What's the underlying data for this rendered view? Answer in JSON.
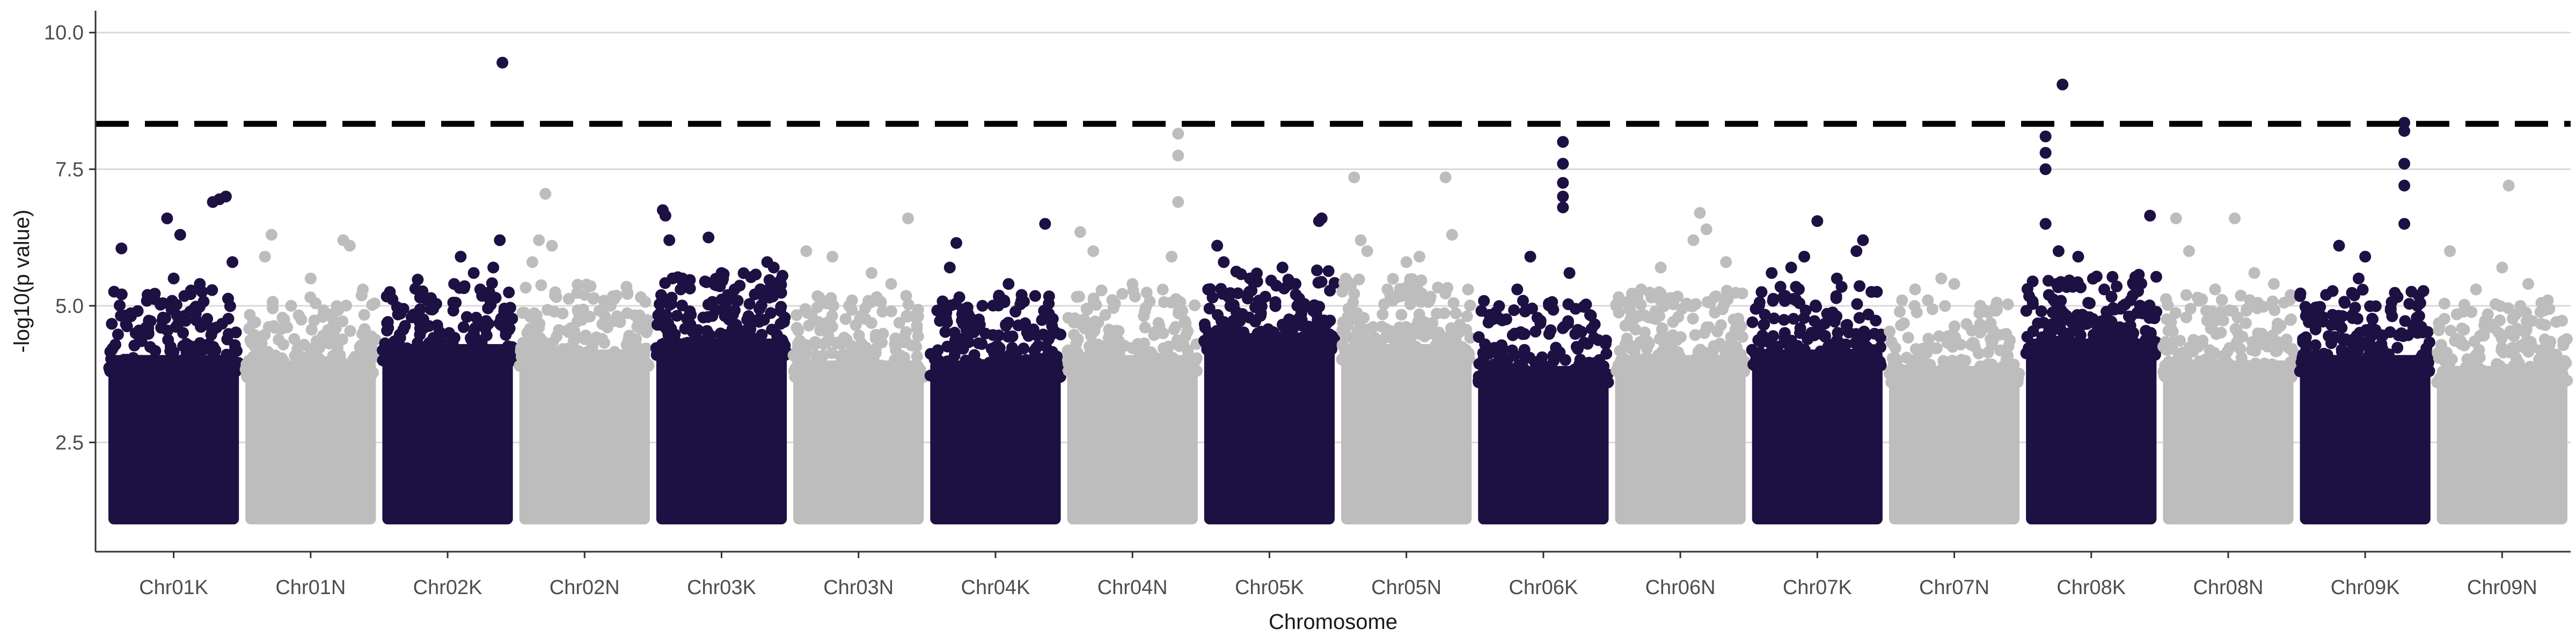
{
  "chart_data": {
    "type": "scatter",
    "title": "",
    "xlabel": "Chromosome",
    "ylabel": "-log10(p value)",
    "ylim": [
      0.5,
      10.4
    ],
    "yticks": [
      2.5,
      5.0,
      7.5,
      10.0
    ],
    "yticks_labels": [
      "2.5",
      "5.0",
      "7.5",
      "10.0"
    ],
    "grid": "horizontal major gridlines",
    "legend": "none",
    "threshold": {
      "value": 8.33,
      "style": "dashed",
      "color": "#000000"
    },
    "colors": {
      "dark": "#1d1042",
      "light": "#bdbdbd"
    },
    "categories": [
      "Chr01K",
      "Chr01N",
      "Chr02K",
      "Chr02N",
      "Chr03K",
      "Chr03N",
      "Chr04K",
      "Chr04N",
      "Chr05K",
      "Chr05N",
      "Chr06K",
      "Chr06N",
      "Chr07K",
      "Chr07N",
      "Chr08K",
      "Chr08N",
      "Chr09K",
      "Chr09N"
    ],
    "point_min": 1.0,
    "chromosomes": [
      {
        "name": "Chr01K",
        "color": "dark",
        "dense_top": 4.1,
        "peaks": [
          [
            0.1,
            6.05
          ],
          [
            0.45,
            6.6
          ],
          [
            0.55,
            6.3
          ],
          [
            0.8,
            6.9
          ],
          [
            0.85,
            6.95
          ],
          [
            0.9,
            7.0
          ],
          [
            0.95,
            5.8
          ],
          [
            0.5,
            5.5
          ],
          [
            0.3,
            5.2
          ],
          [
            0.7,
            5.4
          ]
        ]
      },
      {
        "name": "Chr01N",
        "color": "light",
        "dense_top": 4.0,
        "peaks": [
          [
            0.2,
            6.3
          ],
          [
            0.15,
            5.9
          ],
          [
            0.5,
            5.5
          ],
          [
            0.75,
            6.2
          ],
          [
            0.8,
            6.1
          ],
          [
            0.9,
            5.3
          ],
          [
            0.35,
            5.0
          ]
        ]
      },
      {
        "name": "Chr02K",
        "color": "dark",
        "dense_top": 4.3,
        "peaks": [
          [
            0.92,
            9.45
          ],
          [
            0.9,
            6.2
          ],
          [
            0.85,
            5.7
          ],
          [
            0.7,
            5.6
          ],
          [
            0.55,
            5.4
          ],
          [
            0.6,
            5.9
          ],
          [
            0.3,
            5.2
          ],
          [
            0.75,
            5.3
          ]
        ]
      },
      {
        "name": "Chr02N",
        "color": "light",
        "dense_top": 4.2,
        "peaks": [
          [
            0.2,
            7.05
          ],
          [
            0.15,
            6.2
          ],
          [
            0.25,
            6.1
          ],
          [
            0.1,
            5.8
          ],
          [
            0.5,
            5.2
          ],
          [
            0.7,
            5.0
          ]
        ]
      },
      {
        "name": "Chr03K",
        "color": "dark",
        "dense_top": 4.4,
        "peaks": [
          [
            0.05,
            6.75
          ],
          [
            0.07,
            6.65
          ],
          [
            0.1,
            6.2
          ],
          [
            0.4,
            6.25
          ],
          [
            0.5,
            5.6
          ],
          [
            0.85,
            5.8
          ],
          [
            0.9,
            5.7
          ],
          [
            0.6,
            5.3
          ],
          [
            0.2,
            5.5
          ]
        ]
      },
      {
        "name": "Chr03N",
        "color": "light",
        "dense_top": 4.0,
        "peaks": [
          [
            0.88,
            6.6
          ],
          [
            0.1,
            6.0
          ],
          [
            0.3,
            5.9
          ],
          [
            0.6,
            5.6
          ],
          [
            0.75,
            5.4
          ],
          [
            0.45,
            5.1
          ]
        ]
      },
      {
        "name": "Chr04K",
        "color": "dark",
        "dense_top": 4.0,
        "peaks": [
          [
            0.2,
            6.15
          ],
          [
            0.15,
            5.7
          ],
          [
            0.88,
            6.5
          ],
          [
            0.6,
            5.4
          ],
          [
            0.7,
            5.2
          ],
          [
            0.4,
            5.0
          ]
        ]
      },
      {
        "name": "Chr04N",
        "color": "light",
        "dense_top": 4.1,
        "peaks": [
          [
            0.85,
            8.15
          ],
          [
            0.85,
            7.75
          ],
          [
            0.85,
            6.9
          ],
          [
            0.8,
            5.9
          ],
          [
            0.1,
            6.35
          ],
          [
            0.2,
            6.0
          ],
          [
            0.5,
            5.4
          ]
        ]
      },
      {
        "name": "Chr05K",
        "color": "dark",
        "dense_top": 4.5,
        "peaks": [
          [
            0.9,
            6.6
          ],
          [
            0.88,
            6.55
          ],
          [
            0.1,
            6.1
          ],
          [
            0.15,
            5.8
          ],
          [
            0.35,
            5.5
          ],
          [
            0.6,
            5.7
          ],
          [
            0.7,
            5.4
          ]
        ]
      },
      {
        "name": "Chr05N",
        "color": "light",
        "dense_top": 4.3,
        "peaks": [
          [
            0.1,
            7.35
          ],
          [
            0.8,
            7.35
          ],
          [
            0.15,
            6.2
          ],
          [
            0.2,
            6.0
          ],
          [
            0.85,
            6.3
          ],
          [
            0.5,
            5.8
          ],
          [
            0.6,
            5.9
          ]
        ]
      },
      {
        "name": "Chr06K",
        "color": "dark",
        "dense_top": 3.9,
        "peaks": [
          [
            0.65,
            8.0
          ],
          [
            0.65,
            7.6
          ],
          [
            0.65,
            7.25
          ],
          [
            0.65,
            7.0
          ],
          [
            0.65,
            6.8
          ],
          [
            0.4,
            5.9
          ],
          [
            0.7,
            5.6
          ],
          [
            0.3,
            5.3
          ]
        ]
      },
      {
        "name": "Chr06N",
        "color": "light",
        "dense_top": 4.1,
        "peaks": [
          [
            0.65,
            6.7
          ],
          [
            0.6,
            6.2
          ],
          [
            0.7,
            6.4
          ],
          [
            0.35,
            5.7
          ],
          [
            0.2,
            5.3
          ],
          [
            0.85,
            5.8
          ]
        ]
      },
      {
        "name": "Chr07K",
        "color": "dark",
        "dense_top": 4.2,
        "peaks": [
          [
            0.5,
            6.55
          ],
          [
            0.85,
            6.2
          ],
          [
            0.8,
            6.0
          ],
          [
            0.4,
            5.9
          ],
          [
            0.3,
            5.7
          ],
          [
            0.15,
            5.6
          ],
          [
            0.65,
            5.5
          ]
        ]
      },
      {
        "name": "Chr07N",
        "color": "light",
        "dense_top": 3.9,
        "peaks": [
          [
            0.4,
            5.5
          ],
          [
            0.5,
            5.4
          ],
          [
            0.2,
            5.3
          ],
          [
            0.7,
            5.0
          ],
          [
            0.1,
            5.1
          ]
        ]
      },
      {
        "name": "Chr08K",
        "color": "dark",
        "dense_top": 4.4,
        "peaks": [
          [
            0.28,
            9.05
          ],
          [
            0.15,
            8.1
          ],
          [
            0.15,
            7.8
          ],
          [
            0.15,
            7.5
          ],
          [
            0.15,
            6.5
          ],
          [
            0.25,
            6.0
          ],
          [
            0.4,
            5.9
          ],
          [
            0.95,
            6.65
          ],
          [
            0.6,
            5.3
          ],
          [
            0.8,
            5.1
          ]
        ]
      },
      {
        "name": "Chr08N",
        "color": "light",
        "dense_top": 4.0,
        "peaks": [
          [
            0.1,
            6.6
          ],
          [
            0.55,
            6.6
          ],
          [
            0.2,
            6.0
          ],
          [
            0.4,
            5.3
          ],
          [
            0.7,
            5.6
          ],
          [
            0.85,
            5.4
          ]
        ]
      },
      {
        "name": "Chr09K",
        "color": "dark",
        "dense_top": 4.1,
        "peaks": [
          [
            0.8,
            8.35
          ],
          [
            0.8,
            8.2
          ],
          [
            0.8,
            7.6
          ],
          [
            0.8,
            7.2
          ],
          [
            0.8,
            6.5
          ],
          [
            0.3,
            6.1
          ],
          [
            0.5,
            5.9
          ],
          [
            0.45,
            5.5
          ],
          [
            0.2,
            5.2
          ],
          [
            0.9,
            5.0
          ]
        ]
      },
      {
        "name": "Chr09N",
        "color": "light",
        "dense_top": 3.9,
        "peaks": [
          [
            0.1,
            6.0
          ],
          [
            0.55,
            7.2
          ],
          [
            0.5,
            5.7
          ],
          [
            0.3,
            5.3
          ],
          [
            0.7,
            5.4
          ],
          [
            0.85,
            5.1
          ]
        ]
      }
    ]
  }
}
